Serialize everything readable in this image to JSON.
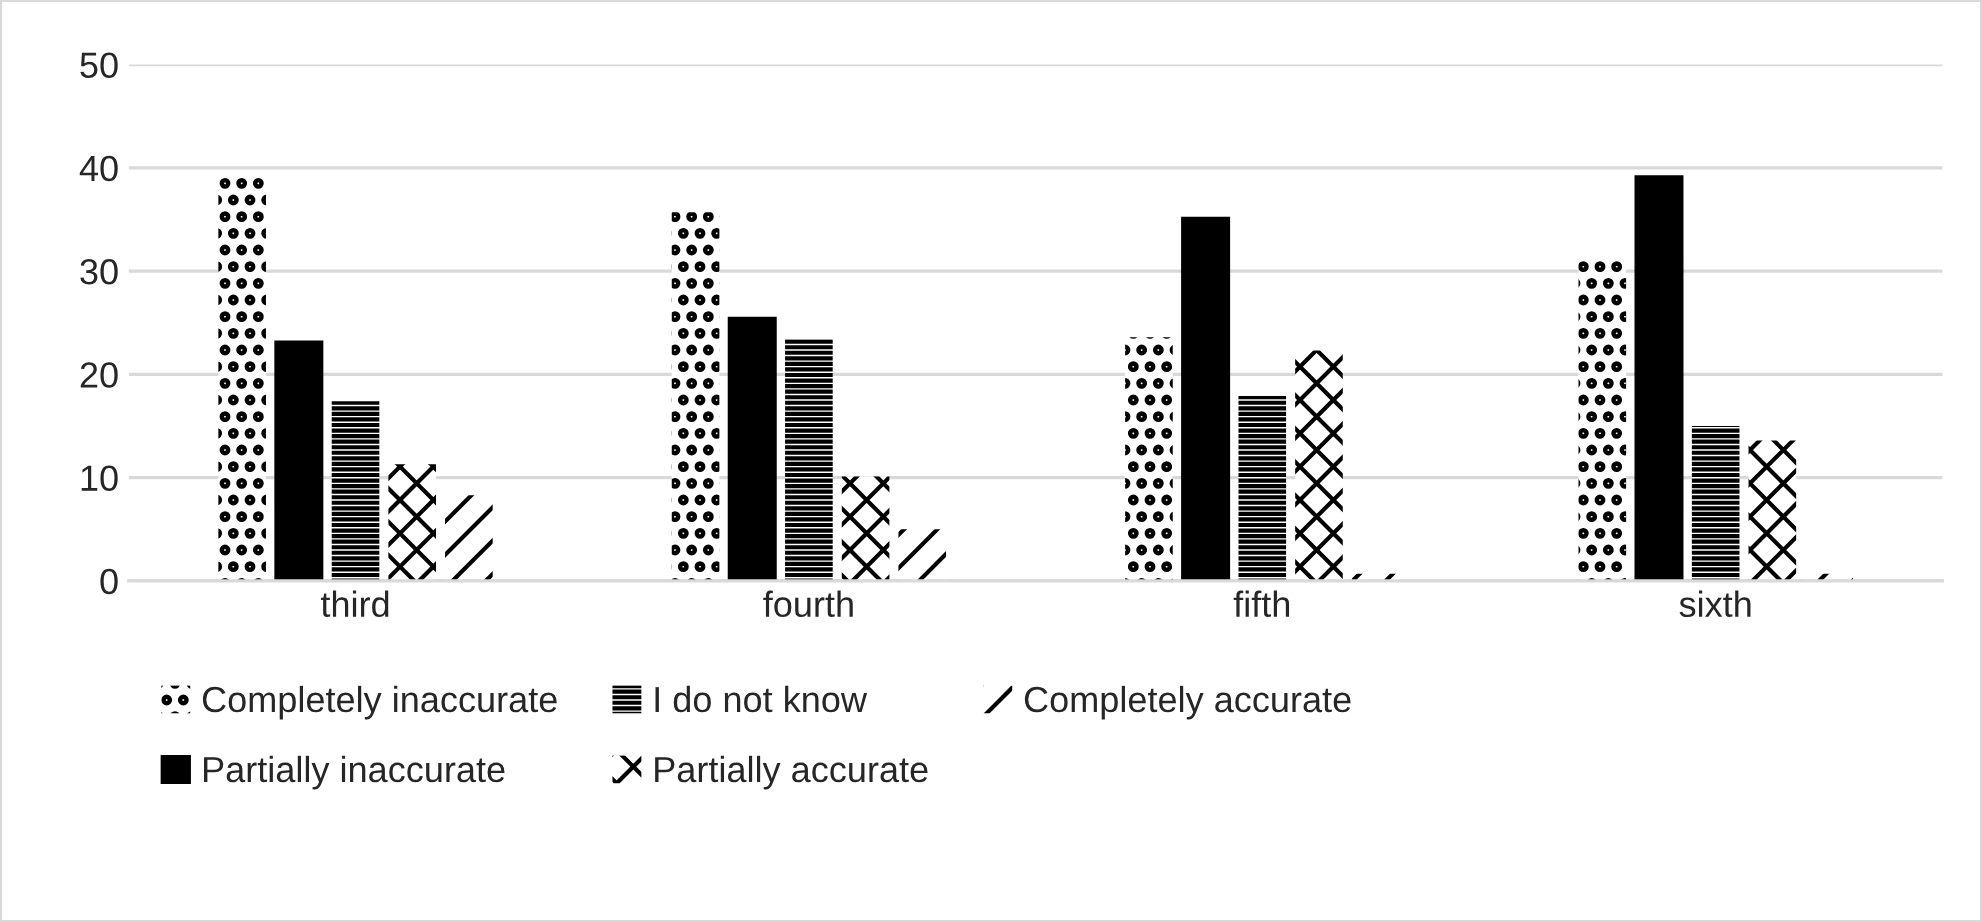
{
  "chart_data": {
    "type": "bar",
    "categories": [
      "third",
      "fourth",
      "fifth",
      "sixth"
    ],
    "series": [
      {
        "name": "Completely inaccurate",
        "color": "#000000",
        "values": [
          39.3,
          35.7,
          23.6,
          31.3
        ]
      },
      {
        "name": "Partially inaccurate",
        "color": "#000000",
        "values": [
          23.2,
          25.5,
          35.2,
          39.2
        ]
      },
      {
        "name": "I do not know",
        "color": "#000000",
        "values": [
          17.4,
          23.4,
          17.9,
          15.0
        ]
      },
      {
        "name": "Partially accurate",
        "color": "#000000",
        "values": [
          11.3,
          10.1,
          22.3,
          13.6
        ]
      },
      {
        "name": "Completely accurate",
        "color": "#000000",
        "values": [
          8.3,
          5.0,
          0.7,
          0.7
        ]
      }
    ],
    "ylim": [
      0,
      50
    ],
    "yticks": [
      0,
      10,
      20,
      30,
      40,
      50
    ],
    "grid": "y",
    "legend": "bottom"
  }
}
